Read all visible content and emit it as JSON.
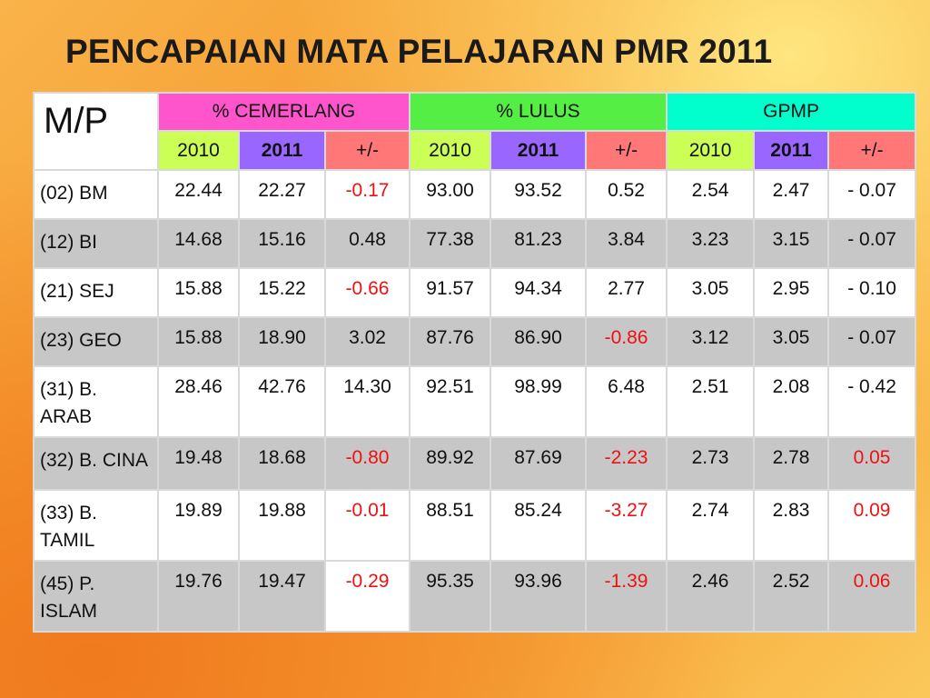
{
  "title": "PENCAPAIAN MATA PELAJARAN PMR 2011",
  "header": {
    "mp": "M/P",
    "groups": [
      "% CEMERLANG",
      "% LULUS",
      "GPMP"
    ],
    "subs": [
      "2010",
      "2011",
      "+/-"
    ]
  },
  "rows": [
    {
      "subject": "(02) BM",
      "cem": [
        "22.44",
        "22.27",
        "-0.17"
      ],
      "lul": [
        "93.00",
        "93.52",
        "0.52"
      ],
      "gpmp": [
        "2.54",
        "2.47",
        "- 0.07"
      ]
    },
    {
      "subject": "(12) BI",
      "cem": [
        "14.68",
        "15.16",
        "0.48"
      ],
      "lul": [
        "77.38",
        "81.23",
        "3.84"
      ],
      "gpmp": [
        "3.23",
        "3.15",
        "- 0.07"
      ]
    },
    {
      "subject": "(21) SEJ",
      "cem": [
        "15.88",
        "15.22",
        "-0.66"
      ],
      "lul": [
        "91.57",
        "94.34",
        "2.77"
      ],
      "gpmp": [
        "3.05",
        "2.95",
        "- 0.10"
      ]
    },
    {
      "subject": "(23) GEO",
      "cem": [
        "15.88",
        "18.90",
        "3.02"
      ],
      "lul": [
        "87.76",
        "86.90",
        "-0.86"
      ],
      "gpmp": [
        "3.12",
        "3.05",
        "- 0.07"
      ]
    },
    {
      "subject": "(31) B. ARAB",
      "cem": [
        "28.46",
        "42.76",
        "14.30"
      ],
      "lul": [
        "92.51",
        "98.99",
        "6.48"
      ],
      "gpmp": [
        "2.51",
        "2.08",
        "- 0.42"
      ]
    },
    {
      "subject": "(32) B. CINA",
      "cem": [
        "19.48",
        "18.68",
        "-0.80"
      ],
      "lul": [
        "89.92",
        "87.69",
        "-2.23"
      ],
      "gpmp": [
        "2.73",
        "2.78",
        "0.05"
      ]
    },
    {
      "subject": "(33) B. TAMIL",
      "cem": [
        "19.89",
        "19.88",
        "-0.01"
      ],
      "lul": [
        "88.51",
        "85.24",
        "-3.27"
      ],
      "gpmp": [
        "2.74",
        "2.83",
        "0.09"
      ]
    },
    {
      "subject": "(45) P. ISLAM",
      "cem": [
        "19.76",
        "19.47",
        "-0.29"
      ],
      "lul": [
        "95.35",
        "93.96",
        "-1.39"
      ],
      "gpmp": [
        "2.46",
        "2.52",
        "0.06"
      ]
    }
  ],
  "colors": {
    "cemerlang_header": "#ff55cc",
    "lulus_header": "#55ee44",
    "gpmp_header": "#00ffcc",
    "year_2010": "#ccff55",
    "year_2011": "#9966ff",
    "change": "#ff7777",
    "highlight_text": "#ee1111",
    "alt_row": "#c7c7c7"
  }
}
